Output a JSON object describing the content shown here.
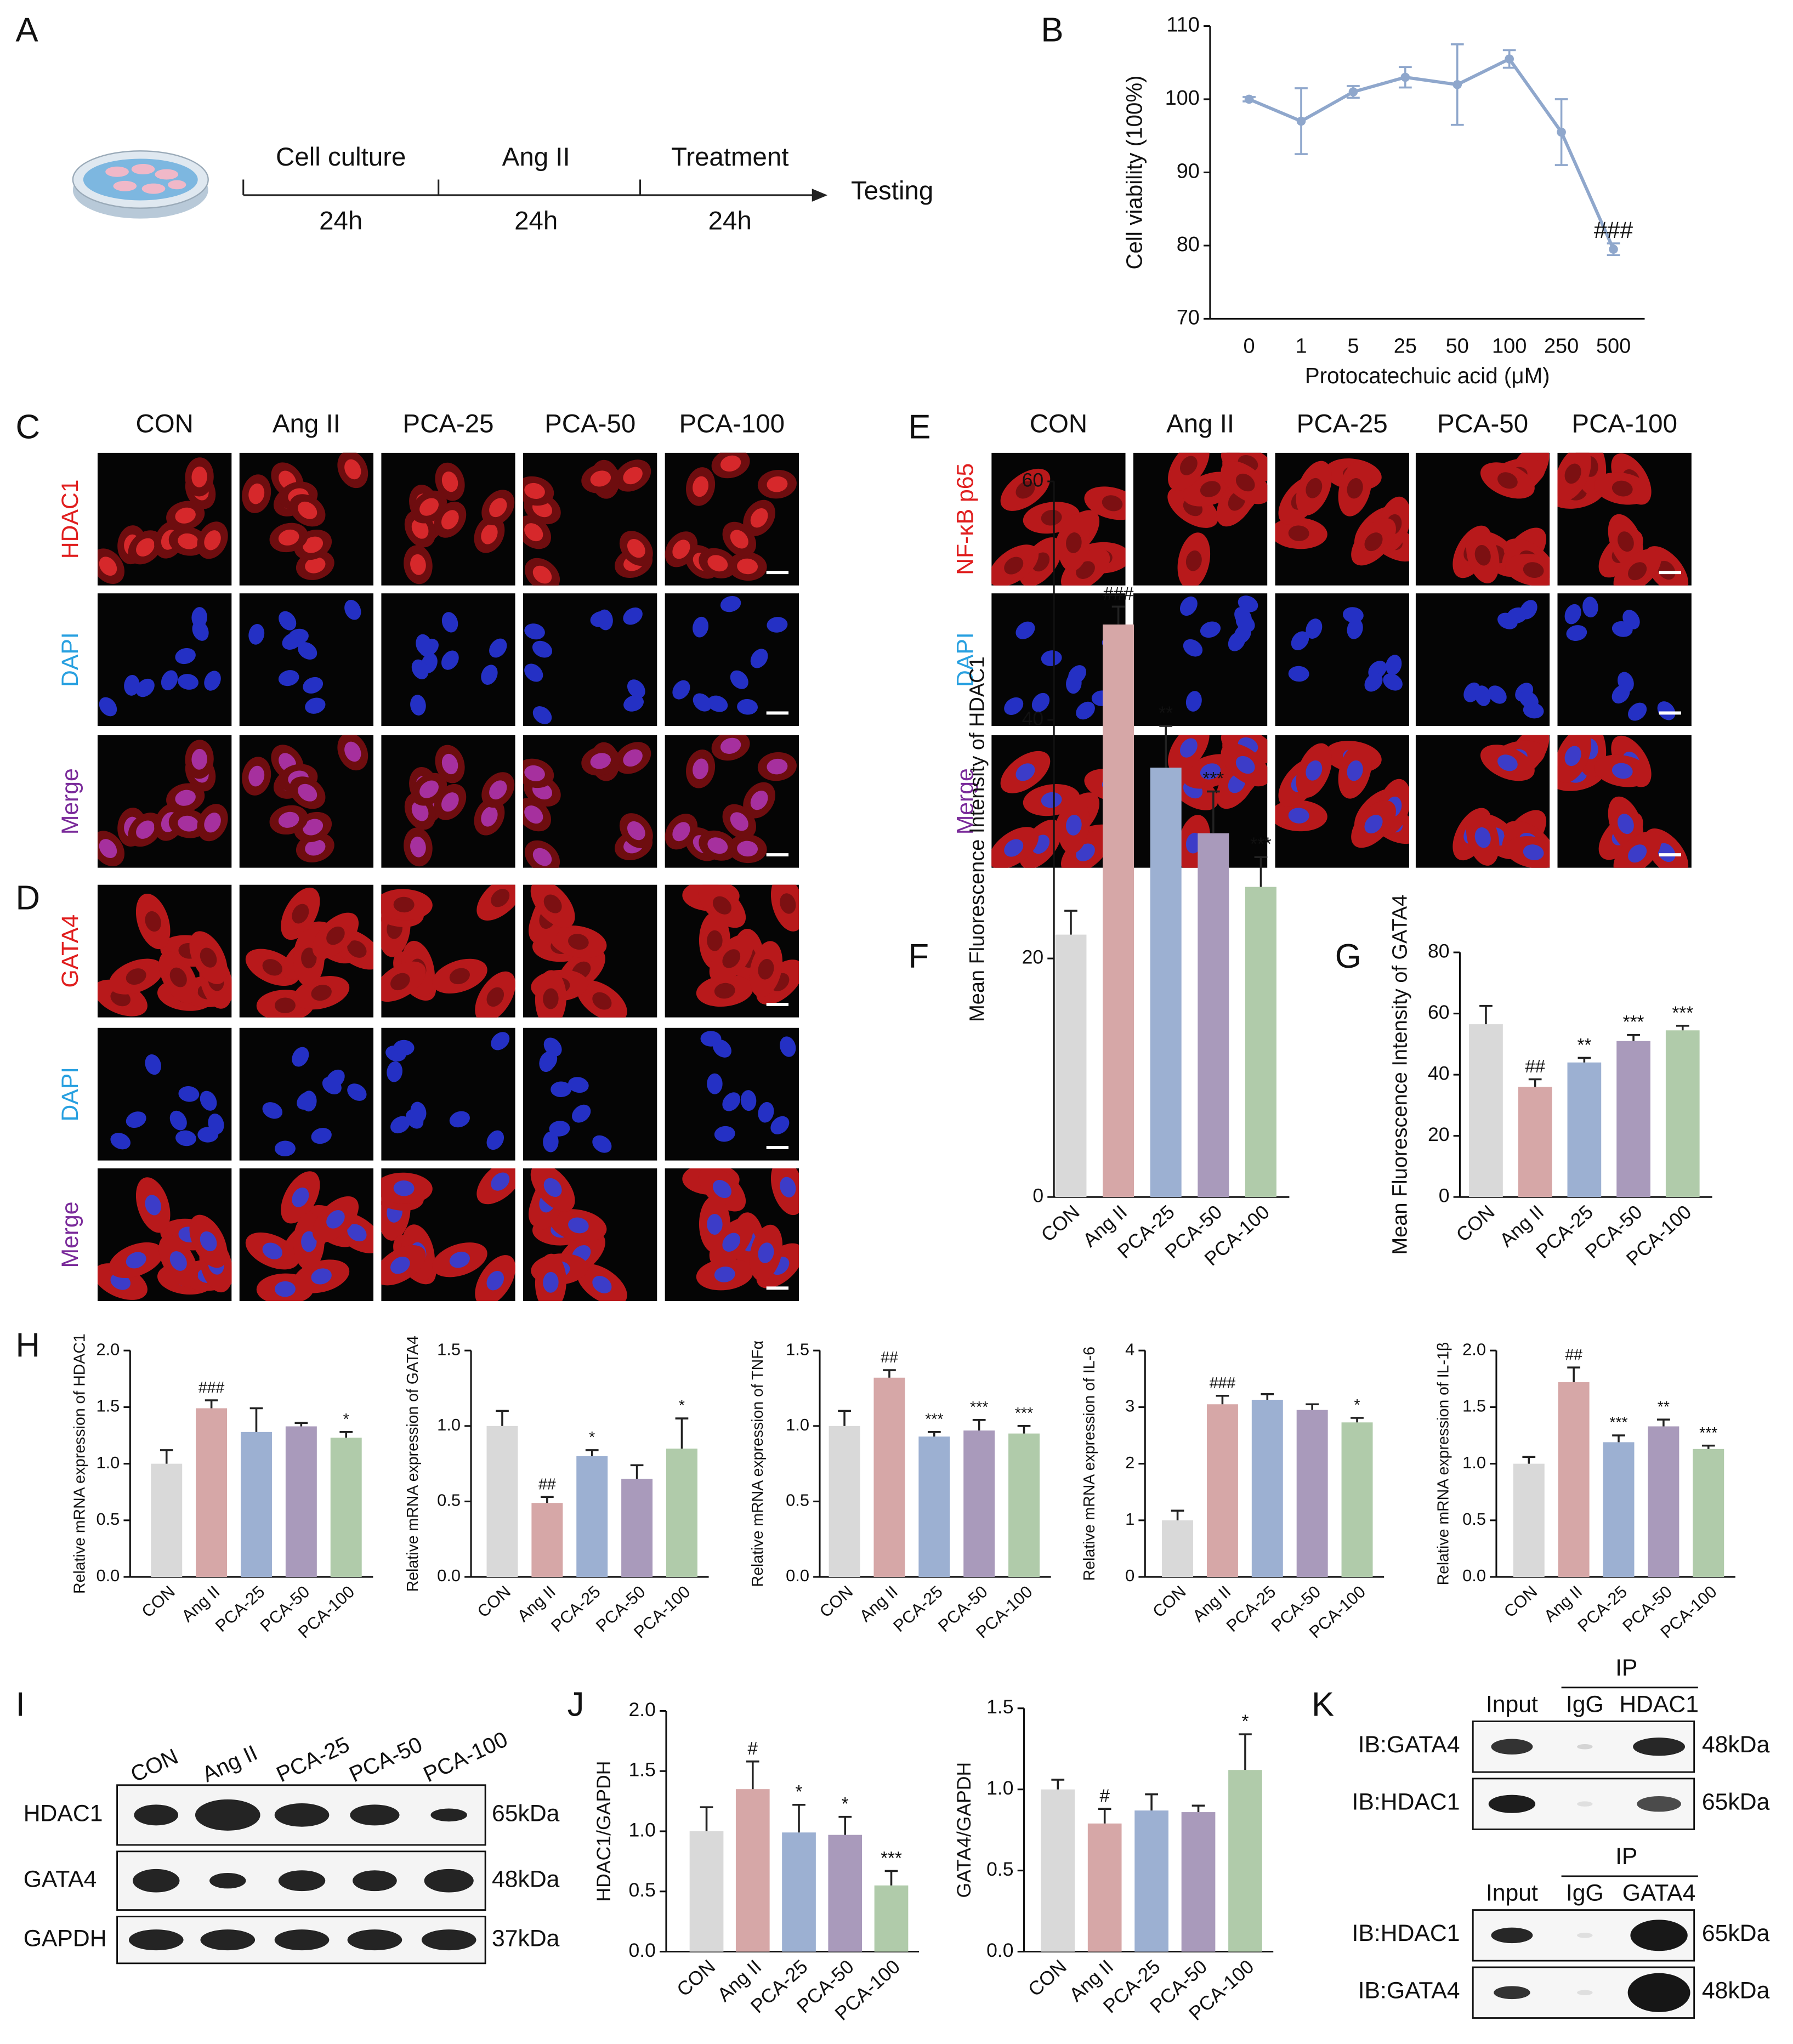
{
  "panel_labels": {
    "a": "A",
    "b": "B",
    "c": "C",
    "d": "D",
    "e": "E",
    "f": "F",
    "g": "G",
    "h": "H",
    "i": "I",
    "j": "J",
    "k": "K"
  },
  "panel_a": {
    "steps": [
      {
        "name": "Cell culture",
        "duration": "24h"
      },
      {
        "name": "Ang II",
        "duration": "24h"
      },
      {
        "name": "Treatment",
        "duration": "24h"
      }
    ],
    "end": "Testing"
  },
  "panel_c": {
    "columns": [
      "CON",
      "Ang II",
      "PCA-25",
      "PCA-50",
      "PCA-100"
    ],
    "rows": [
      "HDAC1",
      "DAPI",
      "Merge"
    ]
  },
  "panel_d": {
    "rows": [
      "GATA4",
      "DAPI",
      "Merge"
    ]
  },
  "panel_e": {
    "columns": [
      "CON",
      "Ang II",
      "PCA-25",
      "PCA-50",
      "PCA-100"
    ],
    "rows": [
      "NF-κB p65",
      "DAPI",
      "Merge"
    ]
  },
  "panel_i": {
    "columns": [
      "CON",
      "Ang II",
      "PCA-25",
      "PCA-50",
      "PCA-100"
    ],
    "rows": [
      {
        "name": "HDAC1",
        "size": "65kDa"
      },
      {
        "name": "GATA4",
        "size": "48kDa"
      },
      {
        "name": "GAPDH",
        "size": "37kDa"
      }
    ]
  },
  "panel_k": {
    "blocks": [
      {
        "group": "IP",
        "columns": [
          "Input",
          "IgG",
          "HDAC1"
        ],
        "rows": [
          {
            "name": "IB:GATA4",
            "size": "48kDa"
          },
          {
            "name": "IB:HDAC1",
            "size": "65kDa"
          }
        ]
      },
      {
        "group": "IP",
        "columns": [
          "Input",
          "IgG",
          "GATA4"
        ],
        "rows": [
          {
            "name": "IB:HDAC1",
            "size": "65kDa"
          },
          {
            "name": "IB:GATA4",
            "size": "48kDa"
          }
        ]
      }
    ]
  },
  "chart_data": [
    {
      "type": "line",
      "ylabel": "Cell viability (100%)",
      "xlabel": "Protocatechuic acid (μM)",
      "categories": [
        "0",
        "1",
        "5",
        "25",
        "50",
        "100",
        "250",
        "500"
      ],
      "values": [
        100,
        97,
        101,
        103,
        102,
        105.5,
        95.5,
        79.5
      ],
      "errors": [
        0.3,
        4.5,
        0.8,
        1.4,
        5.5,
        1.2,
        4.5,
        0.8
      ],
      "annotations": [
        null,
        null,
        null,
        null,
        null,
        null,
        null,
        "###"
      ],
      "color": "#8fa7cc",
      "ylim": [
        70,
        110
      ],
      "yticks": [
        70,
        80,
        90,
        100,
        110
      ]
    },
    {
      "type": "bar",
      "ylabel": "Mean Fluorescence Intensity of HDAC1",
      "categories": [
        "CON",
        "Ang II",
        "PCA-25",
        "PCA-50",
        "PCA-100"
      ],
      "values": [
        22,
        48,
        36,
        30.5,
        26
      ],
      "errors": [
        2,
        1.5,
        3.5,
        3.5,
        2.5
      ],
      "annotations": [
        null,
        "###",
        "**",
        "***",
        "***"
      ],
      "colors": [
        "#d9d9d9",
        "#d6a7a7",
        "#9cb0d2",
        "#a99abb",
        "#b0cbaa"
      ],
      "ylim": [
        0,
        60
      ],
      "yticks": [
        0,
        20,
        40,
        60
      ]
    },
    {
      "type": "bar",
      "ylabel": "Mean Fluorescence Intensity of GATA4",
      "categories": [
        "CON",
        "Ang II",
        "PCA-25",
        "PCA-50",
        "PCA-100"
      ],
      "values": [
        56.5,
        36,
        44,
        51,
        54.5
      ],
      "errors": [
        6,
        2.5,
        1.5,
        2,
        1.5
      ],
      "annotations": [
        null,
        "##",
        "**",
        "***",
        "***"
      ],
      "colors": [
        "#d9d9d9",
        "#d6a7a7",
        "#9cb0d2",
        "#a99abb",
        "#b0cbaa"
      ],
      "ylim": [
        0,
        80
      ],
      "yticks": [
        0,
        20,
        40,
        60,
        80
      ]
    },
    {
      "type": "bar",
      "ylabel": "Relative mRNA expression of HDAC1",
      "categories": [
        "CON",
        "Ang II",
        "PCA-25",
        "PCA-50",
        "PCA-100"
      ],
      "values": [
        1.0,
        1.49,
        1.28,
        1.33,
        1.23
      ],
      "errors": [
        0.12,
        0.07,
        0.21,
        0.03,
        0.05
      ],
      "annotations": [
        null,
        "###",
        null,
        null,
        "*"
      ],
      "colors": [
        "#d9d9d9",
        "#d6a7a7",
        "#9cb0d2",
        "#a99abb",
        "#b0cbaa"
      ],
      "ylim": [
        0,
        2
      ],
      "yticks": [
        {
          "value": 0,
          "label": "0.0"
        },
        {
          "value": 0.5,
          "label": "0.5"
        },
        {
          "value": 1,
          "label": "1.0"
        },
        {
          "value": 1.5,
          "label": "1.5"
        },
        {
          "value": 2,
          "label": "2.0"
        }
      ]
    },
    {
      "type": "bar",
      "ylabel": "Relative mRNA expression of GATA4",
      "categories": [
        "CON",
        "Ang II",
        "PCA-25",
        "PCA-50",
        "PCA-100"
      ],
      "values": [
        1.0,
        0.49,
        0.8,
        0.65,
        0.85
      ],
      "errors": [
        0.1,
        0.04,
        0.04,
        0.09,
        0.2
      ],
      "annotations": [
        null,
        "##",
        "*",
        null,
        "*"
      ],
      "colors": [
        "#d9d9d9",
        "#d6a7a7",
        "#9cb0d2",
        "#a99abb",
        "#b0cbaa"
      ],
      "ylim": [
        0,
        1.5
      ],
      "yticks": [
        {
          "value": 0,
          "label": "0.0"
        },
        {
          "value": 0.5,
          "label": "0.5"
        },
        {
          "value": 1,
          "label": "1.0"
        },
        {
          "value": 1.5,
          "label": "1.5"
        }
      ]
    },
    {
      "type": "bar",
      "ylabel": "Relative mRNA expression of TNFα",
      "categories": [
        "CON",
        "Ang II",
        "PCA-25",
        "PCA-50",
        "PCA-100"
      ],
      "values": [
        1.0,
        1.32,
        0.93,
        0.97,
        0.95
      ],
      "errors": [
        0.1,
        0.05,
        0.03,
        0.07,
        0.05
      ],
      "annotations": [
        null,
        "##",
        "***",
        "***",
        "***"
      ],
      "colors": [
        "#d9d9d9",
        "#d6a7a7",
        "#9cb0d2",
        "#a99abb",
        "#b0cbaa"
      ],
      "ylim": [
        0,
        1.5
      ],
      "yticks": [
        {
          "value": 0,
          "label": "0.0"
        },
        {
          "value": 0.5,
          "label": "0.5"
        },
        {
          "value": 1,
          "label": "1.0"
        },
        {
          "value": 1.5,
          "label": "1.5"
        }
      ]
    },
    {
      "type": "bar",
      "ylabel": "Relative mRNA expression of IL-6",
      "categories": [
        "CON",
        "Ang II",
        "PCA-25",
        "PCA-50",
        "PCA-100"
      ],
      "values": [
        1.0,
        3.05,
        3.13,
        2.95,
        2.73
      ],
      "errors": [
        0.17,
        0.15,
        0.1,
        0.1,
        0.08
      ],
      "annotations": [
        null,
        "###",
        null,
        null,
        "*"
      ],
      "colors": [
        "#d9d9d9",
        "#d6a7a7",
        "#9cb0d2",
        "#a99abb",
        "#b0cbaa"
      ],
      "ylim": [
        0,
        4
      ],
      "yticks": [
        0,
        1,
        2,
        3,
        4
      ]
    },
    {
      "type": "bar",
      "ylabel": "Relative mRNA expression of IL-1β",
      "categories": [
        "CON",
        "Ang II",
        "PCA-25",
        "PCA-50",
        "PCA-100"
      ],
      "values": [
        1.0,
        1.72,
        1.19,
        1.33,
        1.13
      ],
      "errors": [
        0.06,
        0.13,
        0.06,
        0.06,
        0.03
      ],
      "annotations": [
        null,
        "##",
        "***",
        "**",
        "***"
      ],
      "colors": [
        "#d9d9d9",
        "#d6a7a7",
        "#9cb0d2",
        "#a99abb",
        "#b0cbaa"
      ],
      "ylim": [
        0,
        2
      ],
      "yticks": [
        {
          "value": 0,
          "label": "0.0"
        },
        {
          "value": 0.5,
          "label": "0.5"
        },
        {
          "value": 1,
          "label": "1.0"
        },
        {
          "value": 1.5,
          "label": "1.5"
        },
        {
          "value": 2,
          "label": "2.0"
        }
      ]
    },
    {
      "type": "bar",
      "ylabel": "HDAC1/GAPDH",
      "categories": [
        "CON",
        "Ang II",
        "PCA-25",
        "PCA-50",
        "PCA-100"
      ],
      "values": [
        1.0,
        1.35,
        0.99,
        0.97,
        0.55
      ],
      "errors": [
        0.2,
        0.23,
        0.23,
        0.15,
        0.12
      ],
      "annotations": [
        null,
        "#",
        "*",
        "*",
        "***"
      ],
      "colors": [
        "#d9d9d9",
        "#d6a7a7",
        "#9cb0d2",
        "#a99abb",
        "#b0cbaa"
      ],
      "ylim": [
        0,
        2
      ],
      "yticks": [
        {
          "value": 0,
          "label": "0.0"
        },
        {
          "value": 0.5,
          "label": "0.5"
        },
        {
          "value": 1,
          "label": "1.0"
        },
        {
          "value": 1.5,
          "label": "1.5"
        },
        {
          "value": 2,
          "label": "2.0"
        }
      ]
    },
    {
      "type": "bar",
      "ylabel": "GATA4/GAPDH",
      "categories": [
        "CON",
        "Ang II",
        "PCA-25",
        "PCA-50",
        "PCA-100"
      ],
      "values": [
        1.0,
        0.79,
        0.87,
        0.86,
        1.12
      ],
      "errors": [
        0.06,
        0.09,
        0.1,
        0.04,
        0.22
      ],
      "annotations": [
        null,
        "#",
        null,
        null,
        "*"
      ],
      "colors": [
        "#d9d9d9",
        "#d6a7a7",
        "#9cb0d2",
        "#a99abb",
        "#b0cbaa"
      ],
      "ylim": [
        0,
        1.5
      ],
      "yticks": [
        {
          "value": 0,
          "label": "0.0"
        },
        {
          "value": 0.5,
          "label": "0.5"
        },
        {
          "value": 1,
          "label": "1.0"
        },
        {
          "value": 1.5,
          "label": "1.5"
        }
      ]
    }
  ]
}
